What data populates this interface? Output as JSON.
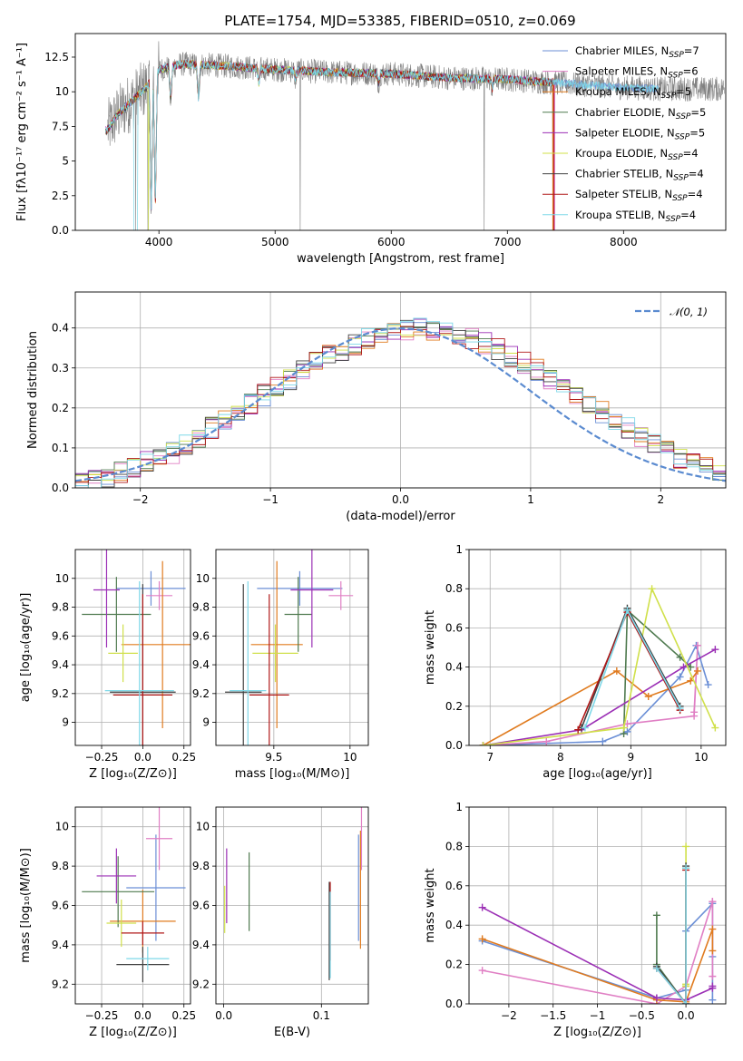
{
  "title": "PLATE=1754, MJD=53385, FIBERID=0510, z=0.069",
  "colors": [
    "#6b8fd6",
    "#e07fc4",
    "#e07b1f",
    "#4f7a4f",
    "#9b2fb5",
    "#d0e04a",
    "#404040",
    "#b01818",
    "#7ed8e8"
  ],
  "legend": [
    {
      "base": "Chabrier MILES, N",
      "n": "=7"
    },
    {
      "base": "Salpeter MILES, N",
      "n": "=6"
    },
    {
      "base": "Kroupa MILES, N",
      "n": "=5"
    },
    {
      "base": "Chabrier ELODIE, N",
      "n": "=5"
    },
    {
      "base": "Salpeter ELODIE, N",
      "n": "=5"
    },
    {
      "base": "Kroupa ELODIE, N",
      "n": "=4"
    },
    {
      "base": "Chabrier STELIB, N",
      "n": "=4"
    },
    {
      "base": "Salpeter STELIB, N",
      "n": "=4"
    },
    {
      "base": "Kroupa STELIB, N",
      "n": "=4"
    }
  ],
  "legend_sub": "SSP",
  "hist_legend": "𝒩(0, 1)",
  "chart_data": [
    {
      "type": "line",
      "name": "spectrum",
      "xlabel": "wavelength [Angstrom, rest frame]",
      "ylabel": "Flux [fλ10⁻¹⁷ erg cm⁻² s⁻¹ A⁻¹]",
      "xlim": [
        3280,
        8880
      ],
      "ylim": [
        0,
        14.2
      ],
      "xticks": [
        4000,
        5000,
        6000,
        7000,
        8000
      ],
      "yticks": [
        0.0,
        2.5,
        5.0,
        7.5,
        10.0,
        12.5
      ],
      "legend_position": "top-right",
      "continuum": [
        [
          3550,
          7.2
        ],
        [
          3650,
          8.4
        ],
        [
          3800,
          9.6
        ],
        [
          3900,
          10.4
        ],
        [
          4000,
          11.6
        ],
        [
          4200,
          12.0
        ],
        [
          4500,
          11.9
        ],
        [
          5000,
          11.6
        ],
        [
          5500,
          11.4
        ],
        [
          6000,
          11.3
        ],
        [
          6500,
          11.0
        ],
        [
          7000,
          10.9
        ],
        [
          7500,
          10.6
        ],
        [
          8000,
          10.3
        ],
        [
          8300,
          10.2
        ]
      ],
      "dips": [
        [
          3934,
          1.2
        ],
        [
          3969,
          1.6
        ],
        [
          4101,
          9.3
        ],
        [
          4340,
          9.6
        ],
        [
          4861,
          10.6
        ],
        [
          5175,
          10.9
        ],
        [
          5890,
          10.6
        ],
        [
          6563,
          11.0
        ],
        [
          6870,
          10.2
        ],
        [
          7600,
          10.4
        ]
      ],
      "spikes": [
        [
          3800,
          0
        ],
        [
          3905,
          0
        ],
        [
          5215,
          0
        ],
        [
          6800,
          0
        ],
        [
          7390,
          0
        ]
      ]
    },
    {
      "type": "line",
      "name": "residual-histogram",
      "xlabel": "(data-model)/error",
      "ylabel": "Normed distribution",
      "xlim": [
        -2.5,
        2.5
      ],
      "ylim": [
        0,
        0.49
      ],
      "xticks": [
        -2,
        -1,
        0,
        1,
        2
      ],
      "yticks": [
        0.0,
        0.1,
        0.2,
        0.3,
        0.4
      ],
      "bin_width": 0.1,
      "series": [
        {
          "values": [
            0.013,
            0.021,
            0.029,
            0.04,
            0.052,
            0.064,
            0.075,
            0.088,
            0.108,
            0.128,
            0.15,
            0.17,
            0.191,
            0.21,
            0.232,
            0.254,
            0.272,
            0.295,
            0.313,
            0.33,
            0.345,
            0.36,
            0.372,
            0.383,
            0.39,
            0.395,
            0.398,
            0.397,
            0.392,
            0.385,
            0.374,
            0.362,
            0.348,
            0.331,
            0.314,
            0.295,
            0.274,
            0.253,
            0.232,
            0.211,
            0.19,
            0.171,
            0.151,
            0.128,
            0.11,
            0.091,
            0.076,
            0.062,
            0.05,
            0.035
          ]
        }
      ]
    },
    {
      "type": "scatter",
      "name": "age-vs-Z",
      "xlabel": "Z [log₁₀(Z/Z⊙)]",
      "ylabel": "age  [log₁₀(age/yr)]",
      "xlim": [
        -0.41,
        0.29
      ],
      "ylim": [
        8.84,
        10.2
      ],
      "xticks": [
        -0.25,
        0.0,
        0.25
      ],
      "yticks": [
        9.0,
        9.2,
        9.4,
        9.6,
        9.8,
        10.0
      ],
      "points": [
        {
          "x": 0.05,
          "y": 9.93,
          "xerr": 0.21,
          "yerr": 0.12
        },
        {
          "x": 0.1,
          "y": 9.88,
          "xerr": 0.08,
          "yerr": 0.1
        },
        {
          "x": 0.12,
          "y": 9.54,
          "xerr": 0.25,
          "yerr": 0.58
        },
        {
          "x": -0.16,
          "y": 9.75,
          "xerr": 0.21,
          "yerr": 0.26
        },
        {
          "x": -0.22,
          "y": 9.92,
          "xerr": 0.08,
          "yerr": 0.4
        },
        {
          "x": -0.12,
          "y": 9.48,
          "xerr": 0.09,
          "yerr": 0.2
        },
        {
          "x": 0.0,
          "y": 9.21,
          "xerr": 0.2,
          "yerr": 0.75
        },
        {
          "x": 0.0,
          "y": 9.19,
          "xerr": 0.18,
          "yerr": 0.7
        },
        {
          "x": -0.02,
          "y": 9.22,
          "xerr": 0.21,
          "yerr": 0.76
        }
      ]
    },
    {
      "type": "scatter",
      "name": "age-vs-mass",
      "xlabel": "mass [log₁₀(M/M⊙)]",
      "ylabel": "",
      "xlim": [
        9.12,
        10.12
      ],
      "ylim": [
        8.84,
        10.2
      ],
      "xticks": [
        9.5,
        10.0
      ],
      "yticks": [
        9.0,
        9.2,
        9.4,
        9.6,
        9.8,
        10.0
      ],
      "points": [
        {
          "x": 9.67,
          "y": 9.93,
          "xerr": 0.28,
          "yerr": 0.12
        },
        {
          "x": 9.94,
          "y": 9.88,
          "xerr": 0.08,
          "yerr": 0.1
        },
        {
          "x": 9.52,
          "y": 9.54,
          "xerr": 0.17,
          "yerr": 0.58
        },
        {
          "x": 9.66,
          "y": 9.75,
          "xerr": 0.09,
          "yerr": 0.26
        },
        {
          "x": 9.75,
          "y": 9.92,
          "xerr": 0.14,
          "yerr": 0.4
        },
        {
          "x": 9.51,
          "y": 9.48,
          "xerr": 0.15,
          "yerr": 0.2
        },
        {
          "x": 9.3,
          "y": 9.21,
          "xerr": 0.12,
          "yerr": 0.75
        },
        {
          "x": 9.47,
          "y": 9.19,
          "xerr": 0.13,
          "yerr": 0.7
        },
        {
          "x": 9.33,
          "y": 9.22,
          "xerr": 0.12,
          "yerr": 0.76
        }
      ]
    },
    {
      "type": "line",
      "name": "mass-weight-vs-age",
      "xlabel": "age  [log₁₀(age/yr)]",
      "ylabel": "mass weight",
      "xlim": [
        6.7,
        10.35
      ],
      "ylim": [
        0,
        1.0
      ],
      "xticks": [
        7,
        8,
        9,
        10
      ],
      "yticks": [
        0.0,
        0.2,
        0.4,
        0.6,
        0.8,
        1.0
      ],
      "series": [
        {
          "x": [
            6.9,
            8.6,
            8.95,
            9.7,
            9.93,
            10.1
          ],
          "y": [
            0.0,
            0.02,
            0.07,
            0.35,
            0.51,
            0.31
          ]
        },
        {
          "x": [
            6.9,
            7.8,
            8.95,
            9.9,
            9.95,
            9.9
          ],
          "y": [
            0.0,
            0.02,
            0.11,
            0.15,
            0.51,
            0.17
          ]
        },
        {
          "x": [
            6.9,
            8.8,
            9.25,
            9.85,
            9.95
          ],
          "y": [
            0.0,
            0.38,
            0.25,
            0.33,
            0.38
          ]
        },
        {
          "x": [
            8.9,
            8.95,
            9.7,
            9.85
          ],
          "y": [
            0.06,
            0.69,
            0.45,
            0.4
          ]
        },
        {
          "x": [
            6.9,
            8.3,
            9.75,
            10.2
          ],
          "y": [
            0.0,
            0.08,
            0.4,
            0.49
          ]
        },
        {
          "x": [
            6.9,
            8.9,
            9.3,
            10.2
          ],
          "y": [
            0.0,
            0.09,
            0.8,
            0.09
          ]
        },
        {
          "x": [
            8.3,
            8.95,
            9.7
          ],
          "y": [
            0.09,
            0.7,
            0.2
          ]
        },
        {
          "x": [
            8.25,
            8.95,
            9.7
          ],
          "y": [
            0.08,
            0.68,
            0.18
          ]
        },
        {
          "x": [
            8.35,
            8.95,
            9.7
          ],
          "y": [
            0.09,
            0.69,
            0.19
          ]
        }
      ]
    },
    {
      "type": "scatter",
      "name": "mass-vs-Z",
      "xlabel": "Z [log₁₀(Z/Z⊙)]",
      "ylabel": "mass [log₁₀(M/M⊙)]",
      "xlim": [
        -0.41,
        0.29
      ],
      "ylim": [
        9.1,
        10.1
      ],
      "xticks": [
        -0.25,
        0.0,
        0.25
      ],
      "yticks": [
        9.2,
        9.4,
        9.6,
        9.8,
        10.0
      ],
      "points": [
        {
          "x": 0.08,
          "y": 9.69,
          "xerr": 0.18,
          "yerr": 0.27
        },
        {
          "x": 0.1,
          "y": 9.94,
          "xerr": 0.08,
          "yerr": 0.16
        },
        {
          "x": 0.0,
          "y": 9.52,
          "xerr": 0.2,
          "yerr": 0.16
        },
        {
          "x": -0.15,
          "y": 9.67,
          "xerr": 0.22,
          "yerr": 0.18
        },
        {
          "x": -0.16,
          "y": 9.75,
          "xerr": 0.12,
          "yerr": 0.14
        },
        {
          "x": -0.13,
          "y": 9.51,
          "xerr": 0.09,
          "yerr": 0.12
        },
        {
          "x": 0.0,
          "y": 9.3,
          "xerr": 0.16,
          "yerr": 0.09
        },
        {
          "x": 0.0,
          "y": 9.46,
          "xerr": 0.13,
          "yerr": 0.06
        },
        {
          "x": 0.03,
          "y": 9.33,
          "xerr": 0.13,
          "yerr": 0.06
        }
      ]
    },
    {
      "type": "scatter",
      "name": "mass-vs-EBV",
      "xlabel": "E(B-V)",
      "ylabel": "",
      "xlim": [
        -0.008,
        0.148
      ],
      "ylim": [
        9.1,
        10.1
      ],
      "xticks": [
        0.0,
        0.1
      ],
      "yticks": [
        9.2,
        9.4,
        9.6,
        9.8,
        10.0
      ],
      "points": [
        {
          "x": 0.138,
          "y": 9.69,
          "yerr": 0.27
        },
        {
          "x": 0.141,
          "y": 9.94,
          "yerr": 0.16
        },
        {
          "x": 0.14,
          "y": 9.68,
          "yerr": 0.3
        },
        {
          "x": 0.026,
          "y": 9.67,
          "yerr": 0.2
        },
        {
          "x": 0.003,
          "y": 9.7,
          "yerr": 0.19
        },
        {
          "x": 0.001,
          "y": 9.58,
          "yerr": 0.12
        },
        {
          "x": 0.108,
          "y": 9.47,
          "yerr": 0.25
        },
        {
          "x": 0.109,
          "y": 9.52,
          "yerr": 0.2
        },
        {
          "x": 0.109,
          "y": 9.45,
          "yerr": 0.22
        }
      ]
    },
    {
      "type": "line",
      "name": "mass-weight-vs-Z",
      "xlabel": "Z [log₁₀(Z/Z⊙)]",
      "ylabel": "mass weight",
      "xlim": [
        -2.45,
        0.45
      ],
      "ylim": [
        0,
        1.0
      ],
      "xticks": [
        -2.0,
        -1.5,
        -1.0,
        -0.5,
        0.0
      ],
      "yticks": [
        0.0,
        0.2,
        0.4,
        0.6,
        0.8,
        1.0
      ],
      "series": [
        {
          "x": [
            -2.3,
            -0.33,
            0.0,
            0.0,
            0.3,
            0.3,
            0.3
          ],
          "y": [
            0.32,
            0.03,
            0.07,
            0.37,
            0.51,
            0.24,
            0.02
          ]
        },
        {
          "x": [
            -2.3,
            -0.33,
            0.0,
            0.3,
            0.3,
            0.3
          ],
          "y": [
            0.17,
            0.0,
            0.09,
            0.52,
            0.14,
            0.52
          ]
        },
        {
          "x": [
            -2.3,
            -0.33,
            0.0,
            0.3,
            0.3
          ],
          "y": [
            0.33,
            0.02,
            0.01,
            0.38,
            0.27
          ]
        },
        {
          "x": [
            -0.33,
            -0.33,
            0.0,
            0.0
          ],
          "y": [
            0.45,
            0.2,
            0.0,
            0.69
          ]
        },
        {
          "x": [
            -2.3,
            -0.33,
            0.0,
            0.3,
            0.3
          ],
          "y": [
            0.49,
            0.03,
            0.02,
            0.08,
            0.09
          ]
        },
        {
          "x": [
            0.0,
            0.0,
            0.0,
            0.0
          ],
          "y": [
            0.09,
            0.8,
            0.1,
            0.09
          ]
        },
        {
          "x": [
            -0.33,
            0.0,
            0.0
          ],
          "y": [
            0.19,
            0.0,
            0.7
          ]
        },
        {
          "x": [
            -0.33,
            0.0,
            0.0
          ],
          "y": [
            0.18,
            0.0,
            0.68
          ]
        },
        {
          "x": [
            -0.33,
            0.0,
            0.0
          ],
          "y": [
            0.18,
            0.0,
            0.69
          ]
        }
      ]
    }
  ]
}
